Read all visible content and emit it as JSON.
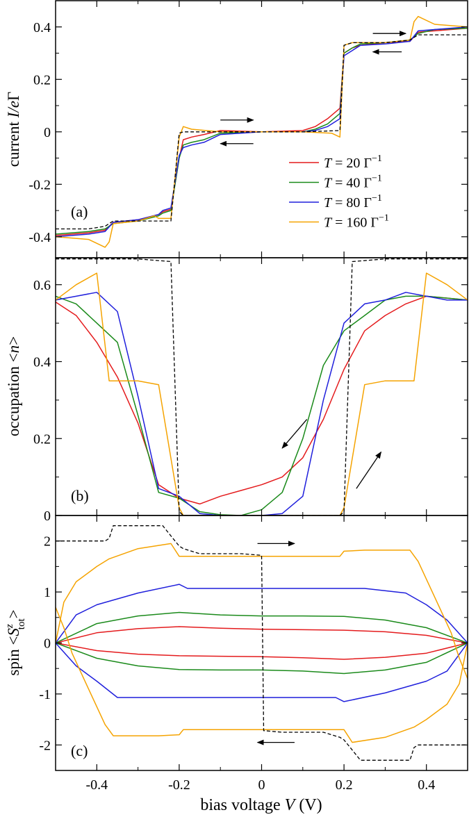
{
  "figure": {
    "xlabel": "bias voltage  V (V)",
    "xlabel_plain": "bias voltage  ",
    "xlabel_var": "V",
    "xlabel_unit": " (V)",
    "x_ticks": [
      "-0.4",
      "-0.2",
      "0",
      "0.2",
      "0.4"
    ],
    "x_tick_values": [
      -0.4,
      -0.2,
      0,
      0.2,
      0.4
    ],
    "xlim": [
      -0.5,
      0.5
    ]
  },
  "legend": [
    {
      "label_prefix": "T",
      "label_mid": " = 20 Γ",
      "label_sup": "−1",
      "color": "#e41a1c"
    },
    {
      "label_prefix": "T",
      "label_mid": " = 40 Γ",
      "label_sup": "−1",
      "color": "#1a8a1a"
    },
    {
      "label_prefix": "T",
      "label_mid": " = 80 Γ",
      "label_sup": "−1",
      "color": "#1f1fdc"
    },
    {
      "label_prefix": "T",
      "label_mid": " = 160 Γ",
      "label_sup": "−1",
      "color": "#f5a300"
    }
  ],
  "chart_data": [
    {
      "type": "line",
      "panel_label": "(a)",
      "ylabel": "current  I/eΓ",
      "ylabel_plain": "current  ",
      "ylabel_var": "I/e",
      "ylabel_greek": "Γ",
      "y_ticks": [
        "-0.4",
        "-0.2",
        "0",
        "0.2",
        "0.4"
      ],
      "y_tick_values": [
        -0.4,
        -0.2,
        0,
        0.2,
        0.4
      ],
      "ylim": [
        -0.48,
        0.5
      ],
      "arrows": [
        {
          "direction": "right",
          "x": [
            -0.1,
            -0.02
          ],
          "y": 0.045
        },
        {
          "direction": "left",
          "x": [
            -0.02,
            -0.1
          ],
          "y": -0.045
        },
        {
          "direction": "right",
          "x": [
            0.27,
            0.35
          ],
          "y": 0.375
        },
        {
          "direction": "left",
          "x": [
            0.34,
            0.27
          ],
          "y": 0.305
        }
      ],
      "series": [
        {
          "name": "T = 20 Γ^-1",
          "color": "#e41a1c",
          "x": [
            -0.5,
            -0.42,
            -0.38,
            -0.36,
            -0.3,
            -0.25,
            -0.24,
            -0.22,
            -0.2,
            -0.19,
            -0.17,
            -0.14,
            -0.1,
            0,
            0.1,
            0.13,
            0.16,
            0.19,
            0.2,
            0.22,
            0.24,
            0.3,
            0.36,
            0.38,
            0.42,
            0.5
          ],
          "y": [
            -0.395,
            -0.385,
            -0.375,
            -0.345,
            -0.335,
            -0.315,
            -0.305,
            -0.295,
            -0.1,
            -0.03,
            -0.02,
            -0.01,
            0.005,
            0.0,
            0.005,
            0.02,
            0.05,
            0.09,
            0.3,
            0.32,
            0.33,
            0.34,
            0.345,
            0.38,
            0.385,
            0.395
          ]
        },
        {
          "name": "T = 40 Γ^-1",
          "color": "#1a8a1a",
          "x": [
            -0.5,
            -0.42,
            -0.38,
            -0.36,
            -0.3,
            -0.25,
            -0.24,
            -0.22,
            -0.2,
            -0.19,
            -0.17,
            -0.14,
            -0.1,
            0,
            0.1,
            0.13,
            0.16,
            0.19,
            0.2,
            0.22,
            0.24,
            0.3,
            0.36,
            0.38,
            0.42,
            0.5
          ],
          "y": [
            -0.39,
            -0.38,
            -0.37,
            -0.35,
            -0.34,
            -0.32,
            -0.31,
            -0.3,
            -0.1,
            -0.05,
            -0.04,
            -0.03,
            -0.005,
            0.0,
            0.0,
            0.01,
            0.03,
            0.07,
            0.3,
            0.32,
            0.335,
            0.34,
            0.35,
            0.375,
            0.39,
            0.395
          ]
        },
        {
          "name": "T = 80 Γ^-1",
          "color": "#1f1fdc",
          "x": [
            -0.5,
            -0.42,
            -0.38,
            -0.36,
            -0.3,
            -0.25,
            -0.24,
            -0.22,
            -0.2,
            -0.19,
            -0.17,
            -0.14,
            -0.1,
            0,
            0.1,
            0.13,
            0.16,
            0.19,
            0.2,
            0.22,
            0.24,
            0.3,
            0.36,
            0.38,
            0.42,
            0.5
          ],
          "y": [
            -0.4,
            -0.39,
            -0.38,
            -0.345,
            -0.335,
            -0.315,
            -0.3,
            -0.29,
            -0.09,
            -0.06,
            -0.05,
            -0.04,
            -0.01,
            0.0,
            0.0,
            0.005,
            0.02,
            0.05,
            0.29,
            0.31,
            0.33,
            0.335,
            0.345,
            0.385,
            0.39,
            0.4
          ]
        },
        {
          "name": "T = 160 Γ^-1",
          "color": "#f5a300",
          "x": [
            -0.5,
            -0.42,
            -0.38,
            -0.37,
            -0.36,
            -0.3,
            -0.26,
            -0.25,
            -0.22,
            -0.2,
            -0.19,
            -0.17,
            -0.1,
            0,
            0.1,
            0.17,
            0.19,
            0.2,
            0.22,
            0.25,
            0.3,
            0.36,
            0.37,
            0.38,
            0.42,
            0.5
          ],
          "y": [
            -0.4,
            -0.41,
            -0.44,
            -0.42,
            -0.35,
            -0.34,
            -0.32,
            -0.33,
            -0.33,
            -0.02,
            0.02,
            0.01,
            0.0,
            0.0,
            0.0,
            -0.005,
            -0.02,
            0.33,
            0.34,
            0.34,
            0.34,
            0.35,
            0.42,
            0.44,
            0.41,
            0.4
          ]
        },
        {
          "name": "",
          "color": "#000000",
          "dashed": true,
          "x": [
            -0.5,
            -0.42,
            -0.38,
            -0.36,
            -0.3,
            -0.26,
            -0.22,
            -0.2,
            -0.19,
            -0.1,
            0,
            0.1,
            0.19,
            0.2,
            0.22,
            0.26,
            0.3,
            0.36,
            0.38,
            0.42,
            0.5
          ],
          "y": [
            -0.37,
            -0.37,
            -0.36,
            -0.34,
            -0.34,
            -0.34,
            -0.34,
            -0.005,
            0.0,
            0.0,
            0.0,
            0.0,
            0.005,
            0.33,
            0.34,
            0.34,
            0.34,
            0.35,
            0.37,
            0.37,
            0.37
          ]
        }
      ]
    },
    {
      "type": "line",
      "panel_label": "(b)",
      "ylabel": "occupation  <n>",
      "ylabel_plain": "occupation  <",
      "ylabel_var": "n",
      "ylabel_end": ">",
      "y_ticks": [
        "0",
        "0.2",
        "0.4",
        "0.6"
      ],
      "y_tick_values": [
        0,
        0.2,
        0.4,
        0.6
      ],
      "ylim": [
        0,
        0.67
      ],
      "arrows": [
        {
          "direction": "down-left",
          "x": [
            0.11,
            0.05
          ],
          "y": [
            0.25,
            0.175
          ]
        },
        {
          "direction": "up-right",
          "x": [
            0.23,
            0.29
          ],
          "y": [
            0.07,
            0.165
          ]
        }
      ],
      "series": [
        {
          "name": "T = 20 Γ^-1",
          "color": "#e41a1c",
          "x": [
            -0.5,
            -0.45,
            -0.4,
            -0.35,
            -0.3,
            -0.25,
            -0.2,
            -0.15,
            -0.1,
            -0.05,
            0,
            0.05,
            0.1,
            0.15,
            0.2,
            0.25,
            0.3,
            0.35,
            0.4,
            0.45,
            0.5
          ],
          "y": [
            0.555,
            0.52,
            0.45,
            0.36,
            0.24,
            0.08,
            0.045,
            0.03,
            0.05,
            0.065,
            0.08,
            0.1,
            0.15,
            0.25,
            0.38,
            0.48,
            0.52,
            0.55,
            0.57,
            0.565,
            0.56
          ]
        },
        {
          "name": "T = 40 Γ^-1",
          "color": "#1a8a1a",
          "x": [
            -0.5,
            -0.45,
            -0.4,
            -0.35,
            -0.3,
            -0.25,
            -0.2,
            -0.15,
            -0.1,
            -0.05,
            0,
            0.05,
            0.1,
            0.15,
            0.2,
            0.25,
            0.3,
            0.35,
            0.4,
            0.45,
            0.5
          ],
          "y": [
            0.57,
            0.55,
            0.5,
            0.45,
            0.26,
            0.06,
            0.045,
            0.01,
            0.002,
            0.0,
            0.015,
            0.06,
            0.2,
            0.39,
            0.48,
            0.52,
            0.56,
            0.57,
            0.57,
            0.565,
            0.56
          ]
        },
        {
          "name": "T = 80 Γ^-1",
          "color": "#1f1fdc",
          "x": [
            -0.5,
            -0.45,
            -0.4,
            -0.35,
            -0.3,
            -0.25,
            -0.2,
            -0.15,
            -0.1,
            -0.05,
            0,
            0.05,
            0.1,
            0.15,
            0.2,
            0.25,
            0.3,
            0.35,
            0.4,
            0.45,
            0.5
          ],
          "y": [
            0.56,
            0.57,
            0.58,
            0.53,
            0.31,
            0.07,
            0.05,
            0.005,
            0.0,
            0.0,
            0.0,
            0.005,
            0.05,
            0.3,
            0.5,
            0.55,
            0.56,
            0.58,
            0.57,
            0.56,
            0.56
          ]
        },
        {
          "name": "T = 160 Γ^-1",
          "color": "#f5a300",
          "x": [
            -0.5,
            -0.45,
            -0.4,
            -0.37,
            -0.36,
            -0.3,
            -0.25,
            -0.2,
            -0.19,
            -0.1,
            0,
            0.1,
            0.19,
            0.2,
            0.25,
            0.3,
            0.36,
            0.37,
            0.4,
            0.45,
            0.5
          ],
          "y": [
            0.56,
            0.6,
            0.63,
            0.35,
            0.35,
            0.35,
            0.34,
            0.02,
            0.0,
            0.0,
            0.0,
            0.0,
            0.0,
            0.02,
            0.34,
            0.35,
            0.35,
            0.35,
            0.63,
            0.6,
            0.56
          ]
        },
        {
          "name": "",
          "color": "#000000",
          "dashed": true,
          "x": [
            -0.5,
            -0.3,
            -0.22,
            -0.2,
            -0.19,
            -0.1,
            0,
            0.1,
            0.19,
            0.2,
            0.22,
            0.3,
            0.5
          ],
          "y": [
            0.667,
            0.667,
            0.66,
            0.01,
            0.0,
            0.0,
            0.0,
            0.0,
            0.0,
            0.01,
            0.66,
            0.667,
            0.667
          ]
        }
      ]
    },
    {
      "type": "line",
      "panel_label": "(c)",
      "ylabel": "spin  <S^z_tot>",
      "ylabel_plain": "spin  <",
      "ylabel_var": "S",
      "ylabel_sup": "z",
      "ylabel_sub": "tot",
      "ylabel_end": ">",
      "y_ticks": [
        "-2",
        "-1",
        "0",
        "1",
        "2"
      ],
      "y_tick_values": [
        -2,
        -1,
        0,
        1,
        2
      ],
      "ylim": [
        -2.5,
        2.5
      ],
      "arrows": [
        {
          "direction": "right",
          "x": [
            -0.01,
            0.08
          ],
          "y": 1.95
        },
        {
          "direction": "left",
          "x": [
            0.08,
            -0.01
          ],
          "y": -1.95
        }
      ],
      "series": [
        {
          "name": "T = 20 Γ^-1 (upper)",
          "color": "#e41a1c",
          "x": [
            -0.5,
            -0.4,
            -0.3,
            -0.2,
            -0.1,
            0,
            0.1,
            0.2,
            0.3,
            0.4,
            0.5
          ],
          "y": [
            0.0,
            0.2,
            0.28,
            0.32,
            0.29,
            0.27,
            0.26,
            0.25,
            0.22,
            0.15,
            0.0
          ]
        },
        {
          "name": "T = 20 Γ^-1 (lower)",
          "color": "#e41a1c",
          "x": [
            -0.5,
            -0.4,
            -0.3,
            -0.2,
            -0.1,
            0,
            0.1,
            0.2,
            0.3,
            0.4,
            0.5
          ],
          "y": [
            0.0,
            -0.15,
            -0.22,
            -0.25,
            -0.26,
            -0.27,
            -0.29,
            -0.32,
            -0.28,
            -0.2,
            0.0
          ]
        },
        {
          "name": "T = 40 Γ^-1 (upper)",
          "color": "#1a8a1a",
          "x": [
            -0.5,
            -0.4,
            -0.3,
            -0.2,
            -0.1,
            0,
            0.1,
            0.2,
            0.3,
            0.4,
            0.5
          ],
          "y": [
            0.0,
            0.38,
            0.53,
            0.6,
            0.55,
            0.53,
            0.53,
            0.52,
            0.45,
            0.3,
            0.0
          ]
        },
        {
          "name": "T = 40 Γ^-1 (lower)",
          "color": "#1a8a1a",
          "x": [
            -0.5,
            -0.4,
            -0.3,
            -0.2,
            -0.1,
            0,
            0.1,
            0.2,
            0.3,
            0.4,
            0.5
          ],
          "y": [
            0.0,
            -0.3,
            -0.45,
            -0.52,
            -0.53,
            -0.53,
            -0.55,
            -0.6,
            -0.53,
            -0.38,
            0.0
          ]
        },
        {
          "name": "T = 80 Γ^-1 (upper)",
          "color": "#1f1fdc",
          "x": [
            -0.5,
            -0.45,
            -0.4,
            -0.3,
            -0.2,
            -0.18,
            -0.1,
            0,
            0.1,
            0.2,
            0.25,
            0.35,
            0.4,
            0.45,
            0.5
          ],
          "y": [
            0.0,
            0.55,
            0.75,
            0.98,
            1.15,
            1.07,
            1.07,
            1.07,
            1.07,
            1.07,
            1.07,
            0.98,
            0.75,
            0.45,
            0.0
          ]
        },
        {
          "name": "T = 80 Γ^-1 (lower)",
          "color": "#1f1fdc",
          "x": [
            -0.5,
            -0.45,
            -0.4,
            -0.35,
            -0.25,
            -0.2,
            -0.1,
            0,
            0.1,
            0.18,
            0.2,
            0.3,
            0.4,
            0.45,
            0.5
          ],
          "y": [
            0.0,
            -0.45,
            -0.75,
            -1.07,
            -1.07,
            -1.07,
            -1.07,
            -1.07,
            -1.07,
            -1.07,
            -1.15,
            -0.98,
            -0.75,
            -0.55,
            0.0
          ]
        },
        {
          "name": "T = 160 Γ^-1 (upper)",
          "color": "#f5a300",
          "x": [
            -0.5,
            -0.48,
            -0.45,
            -0.4,
            -0.37,
            -0.3,
            -0.22,
            -0.2,
            -0.18,
            -0.1,
            0,
            0.1,
            0.19,
            0.2,
            0.25,
            0.3,
            0.36,
            0.38,
            0.42,
            0.46,
            0.48,
            0.5
          ],
          "y": [
            0.0,
            0.8,
            1.2,
            1.5,
            1.65,
            1.85,
            1.95,
            1.7,
            1.7,
            1.7,
            1.7,
            1.7,
            1.7,
            1.8,
            1.82,
            1.82,
            1.82,
            1.6,
            0.9,
            0.2,
            -0.3,
            -0.7
          ]
        },
        {
          "name": "T = 160 Γ^-1 (lower)",
          "color": "#f5a300",
          "x": [
            -0.5,
            -0.48,
            -0.46,
            -0.42,
            -0.38,
            -0.36,
            -0.3,
            -0.25,
            -0.2,
            -0.19,
            -0.1,
            0,
            0.1,
            0.18,
            0.2,
            0.22,
            0.3,
            0.37,
            0.4,
            0.45,
            0.48,
            0.5
          ],
          "y": [
            0.7,
            0.3,
            -0.2,
            -0.9,
            -1.6,
            -1.82,
            -1.82,
            -1.82,
            -1.8,
            -1.7,
            -1.7,
            -1.7,
            -1.7,
            -1.7,
            -1.7,
            -1.95,
            -1.85,
            -1.65,
            -1.5,
            -1.2,
            -0.8,
            0.0
          ]
        },
        {
          "name": "",
          "color": "#000000",
          "dashed": true,
          "x": [
            -0.5,
            -0.38,
            -0.37,
            -0.36,
            -0.3,
            -0.24,
            -0.22,
            -0.2,
            -0.19,
            -0.15,
            -0.05,
            0,
            0.005,
            0.05,
            0.15,
            0.19,
            0.2,
            0.22,
            0.24,
            0.3,
            0.36,
            0.37,
            0.38,
            0.5
          ],
          "y": [
            2.0,
            2.0,
            2.05,
            2.3,
            2.3,
            2.3,
            2.1,
            1.9,
            1.85,
            1.75,
            1.75,
            1.72,
            -1.72,
            -1.75,
            -1.75,
            -1.85,
            -1.9,
            -2.1,
            -2.3,
            -2.3,
            -2.3,
            -2.05,
            -2.0,
            -2.0
          ]
        }
      ]
    }
  ]
}
